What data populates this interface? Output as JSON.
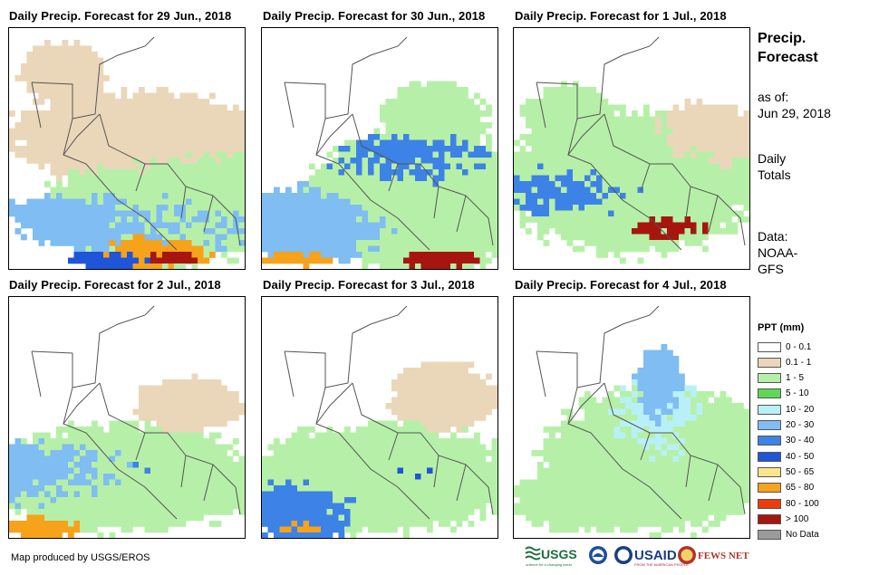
{
  "panels": [
    {
      "title": "Daily Precip. Forecast for 29 Jun., 2018"
    },
    {
      "title": "Daily Precip. Forecast for 30 Jun., 2018"
    },
    {
      "title": "Daily Precip. Forecast for 1 Jul., 2018"
    },
    {
      "title": "Daily Precip. Forecast for 2 Jul., 2018"
    },
    {
      "title": "Daily Precip. Forecast for 3 Jul., 2018"
    },
    {
      "title": "Daily Precip. Forecast for 4 Jul., 2018"
    }
  ],
  "sidebar": {
    "title_line1": "Precip.",
    "title_line2": "Forecast",
    "asof_label": "as of:",
    "asof_date": "Jun 29, 2018",
    "totals_line1": "Daily",
    "totals_line2": "Totals",
    "data_line1": "Data:",
    "data_line2": "NOAA-",
    "data_line3": "GFS"
  },
  "legend": {
    "title": "PPT (mm)",
    "items": [
      {
        "label": "0 - 0.1",
        "color": "#ffffff"
      },
      {
        "label": "0.1 - 1",
        "color": "#ead7b9"
      },
      {
        "label": "1 - 5",
        "color": "#b6f0a8"
      },
      {
        "label": "5 - 10",
        "color": "#5fd855"
      },
      {
        "label": "10 - 20",
        "color": "#b8f0f8"
      },
      {
        "label": "20 - 30",
        "color": "#7fbdf2"
      },
      {
        "label": "30 - 40",
        "color": "#3d82e6"
      },
      {
        "label": "40 - 50",
        "color": "#1f55d8"
      },
      {
        "label": "50 - 65",
        "color": "#ffe58a"
      },
      {
        "label": "65 - 80",
        "color": "#f7a21b"
      },
      {
        "label": "80 - 100",
        "color": "#ee3b0c"
      },
      {
        "label": "> 100",
        "color": "#a6160e"
      },
      {
        "label": "No Data",
        "color": "#9b9b9b"
      }
    ]
  },
  "credit": "Map produced by USGS/EROS",
  "logos": {
    "usgs": "USGS",
    "usgs_tagline": "science for a changing world",
    "usaid": "USAID",
    "usaid_tagline": "FROM THE AMERICAN PEOPLE",
    "fewsnet": "FEWS NET"
  }
}
